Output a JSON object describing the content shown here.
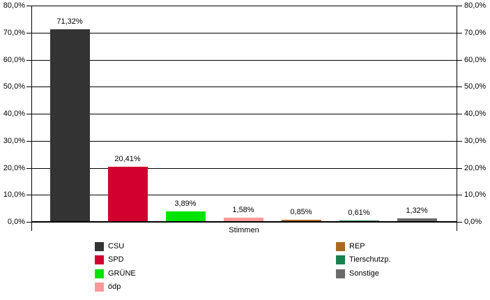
{
  "chart_data": {
    "type": "bar",
    "title": "",
    "xlabel": "Stimmen",
    "ylabel": "",
    "ylim": [
      0,
      80
    ],
    "grid": true,
    "legend_position": "bottom-two-columns",
    "ytick_labels": [
      "80,0%",
      "70,0%",
      "60,0%",
      "50,0%",
      "40,0%",
      "30,0%",
      "20,0%",
      "10,0%",
      "0,0%"
    ],
    "categories": [
      "CSU",
      "SPD",
      "GRÜNE",
      "ödp",
      "REP",
      "Tierschutzp.",
      "Sonstige"
    ],
    "values": [
      71.32,
      20.41,
      3.89,
      1.58,
      0.85,
      0.61,
      1.32
    ],
    "value_labels": [
      "71,32%",
      "20,41%",
      "3,89%",
      "1,58%",
      "0,85%",
      "0,61%",
      "1,32%"
    ],
    "colors": [
      "#333333",
      "#D1002F",
      "#00E400",
      "#FA9999",
      "#AA6A1E",
      "#17804D",
      "#6A6A6A"
    ],
    "axis_color": "#000000",
    "background_color": "#ffffff",
    "legend": {
      "columns": [
        {
          "items": [
            {
              "label": "CSU",
              "color": "#333333"
            },
            {
              "label": "SPD",
              "color": "#D1002F"
            },
            {
              "label": "GRÜNE",
              "color": "#00E400"
            },
            {
              "label": "ödp",
              "color": "#FA9999"
            }
          ]
        },
        {
          "items": [
            {
              "label": "REP",
              "color": "#AA6A1E"
            },
            {
              "label": "Tierschutzp.",
              "color": "#17804D"
            },
            {
              "label": "Sonstige",
              "color": "#6A6A6A"
            }
          ]
        }
      ]
    }
  }
}
